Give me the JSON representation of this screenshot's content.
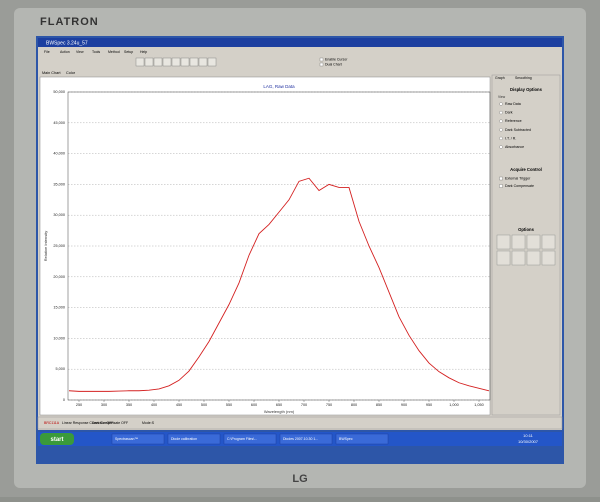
{
  "monitor": {
    "brand": "FLATRON",
    "logo": "LG"
  },
  "window": {
    "title": "BWSpec 3.24u_57",
    "menu": [
      "File",
      "Action",
      "View",
      "Tools",
      "Method",
      "Setup",
      "Help"
    ],
    "checkboxes": [
      "Enable Cursor",
      "Dual Chart"
    ],
    "tabs": [
      "Main Chart",
      "Color"
    ]
  },
  "chart_data": {
    "type": "line",
    "title": "LAG, Raw Data",
    "x_label": "Wavelength (nm)",
    "y_label": "Relative Intensity",
    "color": "#d42020",
    "grid": true,
    "x": [
      230,
      250,
      270,
      290,
      310,
      330,
      350,
      370,
      390,
      410,
      430,
      450,
      470,
      490,
      510,
      530,
      550,
      570,
      590,
      610,
      630,
      650,
      670,
      690,
      710,
      730,
      750,
      770,
      790,
      810,
      830,
      850,
      870,
      890,
      910,
      930,
      950,
      970,
      990,
      1010,
      1030,
      1050,
      1070
    ],
    "values": [
      1500,
      1400,
      1400,
      1400,
      1400,
      1450,
      1500,
      1500,
      1600,
      1800,
      2300,
      3200,
      4700,
      7000,
      9500,
      12500,
      15500,
      19000,
      23500,
      27000,
      28500,
      30500,
      32500,
      35500,
      36000,
      34000,
      35000,
      34500,
      34500,
      29000,
      25000,
      21500,
      17500,
      13500,
      10500,
      8000,
      6000,
      4600,
      3600,
      2800,
      2300,
      1900,
      1500
    ],
    "xlim": [
      228,
      1072
    ],
    "xticks": [
      250,
      300,
      350,
      400,
      450,
      500,
      550,
      600,
      650,
      700,
      750,
      800,
      850,
      900,
      950,
      {
        "value": 1000,
        "label": "1,000"
      },
      {
        "value": 1050,
        "label": "1,050"
      }
    ],
    "ylim": [
      0,
      50000
    ],
    "yticks": [
      0,
      {
        "value": 5000,
        "label": "5,000"
      },
      {
        "value": 10000,
        "label": "10,000"
      },
      {
        "value": 15000,
        "label": "15,000"
      },
      {
        "value": 20000,
        "label": "20,000"
      },
      {
        "value": 25000,
        "label": "25,000"
      },
      {
        "value": 30000,
        "label": "30,000"
      },
      {
        "value": 35000,
        "label": "35,000"
      },
      {
        "value": 40000,
        "label": "40,000"
      },
      {
        "value": 45000,
        "label": "45,000"
      },
      {
        "value": 50000,
        "label": "50,000"
      }
    ]
  },
  "panel": {
    "tabs": [
      "Graph",
      "Smoothing"
    ],
    "display_title": "Display Options",
    "display_group": "View",
    "display_options": [
      "Raw Data",
      "Dark",
      "Reference",
      "Dark Subtracted",
      "I.T. / R.",
      "Absorbance"
    ],
    "acquire_title": "Acquire Control",
    "acquire_options": [
      "External Trigger",
      "Dark Compensate"
    ],
    "options_title": "Options"
  },
  "status": [
    "BRC111A",
    "Linear Response Correction OFF",
    "Dark Compensate OFF",
    "Mode:S"
  ],
  "taskbar": {
    "start": "start",
    "items": [
      "Spectrascan™",
      "Diode calibration",
      "C:\\Program Files\\...",
      "Diodes 2007.10.30 1...",
      "BWSpec"
    ],
    "time": "10:11",
    "date": "10/30/2007"
  }
}
